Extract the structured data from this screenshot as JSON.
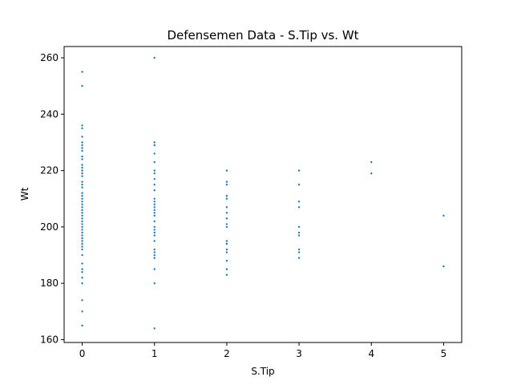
{
  "chart_data": {
    "type": "scatter",
    "title": "Defensemen Data - S.Tip vs. Wt",
    "xlabel": "S.Tip",
    "ylabel": "Wt",
    "xlim": [
      -0.25,
      5.25
    ],
    "ylim": [
      159,
      264
    ],
    "xticks": [
      0,
      1,
      2,
      3,
      4,
      5
    ],
    "yticks": [
      160,
      180,
      200,
      220,
      240,
      260
    ],
    "grid": false,
    "marker_color": "#1f77b4",
    "points": [
      {
        "x": 0,
        "y": 255
      },
      {
        "x": 0,
        "y": 250
      },
      {
        "x": 0,
        "y": 236
      },
      {
        "x": 0,
        "y": 235
      },
      {
        "x": 0,
        "y": 232
      },
      {
        "x": 0,
        "y": 230
      },
      {
        "x": 0,
        "y": 229
      },
      {
        "x": 0,
        "y": 228
      },
      {
        "x": 0,
        "y": 227
      },
      {
        "x": 0,
        "y": 225
      },
      {
        "x": 0,
        "y": 224
      },
      {
        "x": 0,
        "y": 222
      },
      {
        "x": 0,
        "y": 221
      },
      {
        "x": 0,
        "y": 220
      },
      {
        "x": 0,
        "y": 219
      },
      {
        "x": 0,
        "y": 218
      },
      {
        "x": 0,
        "y": 216
      },
      {
        "x": 0,
        "y": 215
      },
      {
        "x": 0,
        "y": 214
      },
      {
        "x": 0,
        "y": 212
      },
      {
        "x": 0,
        "y": 211
      },
      {
        "x": 0,
        "y": 210
      },
      {
        "x": 0,
        "y": 209
      },
      {
        "x": 0,
        "y": 208
      },
      {
        "x": 0,
        "y": 207
      },
      {
        "x": 0,
        "y": 206
      },
      {
        "x": 0,
        "y": 205
      },
      {
        "x": 0,
        "y": 204
      },
      {
        "x": 0,
        "y": 203
      },
      {
        "x": 0,
        "y": 202
      },
      {
        "x": 0,
        "y": 201
      },
      {
        "x": 0,
        "y": 200
      },
      {
        "x": 0,
        "y": 199
      },
      {
        "x": 0,
        "y": 198
      },
      {
        "x": 0,
        "y": 197
      },
      {
        "x": 0,
        "y": 196
      },
      {
        "x": 0,
        "y": 195
      },
      {
        "x": 0,
        "y": 194
      },
      {
        "x": 0,
        "y": 193
      },
      {
        "x": 0,
        "y": 192
      },
      {
        "x": 0,
        "y": 190
      },
      {
        "x": 0,
        "y": 187
      },
      {
        "x": 0,
        "y": 185
      },
      {
        "x": 0,
        "y": 184
      },
      {
        "x": 0,
        "y": 182
      },
      {
        "x": 0,
        "y": 180
      },
      {
        "x": 0,
        "y": 174
      },
      {
        "x": 0,
        "y": 170
      },
      {
        "x": 0,
        "y": 165
      },
      {
        "x": 1,
        "y": 260
      },
      {
        "x": 1,
        "y": 230
      },
      {
        "x": 1,
        "y": 229
      },
      {
        "x": 1,
        "y": 226
      },
      {
        "x": 1,
        "y": 223
      },
      {
        "x": 1,
        "y": 220
      },
      {
        "x": 1,
        "y": 219
      },
      {
        "x": 1,
        "y": 217
      },
      {
        "x": 1,
        "y": 215
      },
      {
        "x": 1,
        "y": 213
      },
      {
        "x": 1,
        "y": 210
      },
      {
        "x": 1,
        "y": 209
      },
      {
        "x": 1,
        "y": 208
      },
      {
        "x": 1,
        "y": 207
      },
      {
        "x": 1,
        "y": 206
      },
      {
        "x": 1,
        "y": 205
      },
      {
        "x": 1,
        "y": 204
      },
      {
        "x": 1,
        "y": 202
      },
      {
        "x": 1,
        "y": 200
      },
      {
        "x": 1,
        "y": 199
      },
      {
        "x": 1,
        "y": 198
      },
      {
        "x": 1,
        "y": 197
      },
      {
        "x": 1,
        "y": 195
      },
      {
        "x": 1,
        "y": 192
      },
      {
        "x": 1,
        "y": 191
      },
      {
        "x": 1,
        "y": 190
      },
      {
        "x": 1,
        "y": 189
      },
      {
        "x": 1,
        "y": 185
      },
      {
        "x": 1,
        "y": 180
      },
      {
        "x": 1,
        "y": 164
      },
      {
        "x": 2,
        "y": 220
      },
      {
        "x": 2,
        "y": 216
      },
      {
        "x": 2,
        "y": 215
      },
      {
        "x": 2,
        "y": 211
      },
      {
        "x": 2,
        "y": 210
      },
      {
        "x": 2,
        "y": 207
      },
      {
        "x": 2,
        "y": 205
      },
      {
        "x": 2,
        "y": 203
      },
      {
        "x": 2,
        "y": 201
      },
      {
        "x": 2,
        "y": 200
      },
      {
        "x": 2,
        "y": 195
      },
      {
        "x": 2,
        "y": 194
      },
      {
        "x": 2,
        "y": 192
      },
      {
        "x": 2,
        "y": 191
      },
      {
        "x": 2,
        "y": 188
      },
      {
        "x": 2,
        "y": 185
      },
      {
        "x": 2,
        "y": 183
      },
      {
        "x": 3,
        "y": 220
      },
      {
        "x": 3,
        "y": 215
      },
      {
        "x": 3,
        "y": 209
      },
      {
        "x": 3,
        "y": 207
      },
      {
        "x": 3,
        "y": 200
      },
      {
        "x": 3,
        "y": 198
      },
      {
        "x": 3,
        "y": 197
      },
      {
        "x": 3,
        "y": 192
      },
      {
        "x": 3,
        "y": 191
      },
      {
        "x": 3,
        "y": 189
      },
      {
        "x": 4,
        "y": 223
      },
      {
        "x": 4,
        "y": 219
      },
      {
        "x": 5,
        "y": 204
      },
      {
        "x": 5,
        "y": 186
      }
    ]
  }
}
